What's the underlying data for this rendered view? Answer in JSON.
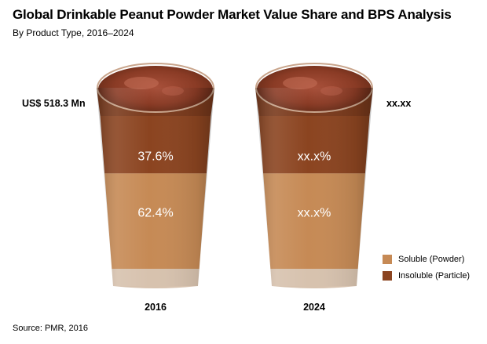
{
  "chart_data": {
    "type": "bar",
    "title": "Global Drinkable Peanut Powder Market Value Share and BPS Analysis",
    "subtitle": "By Product Type, 2016–2024",
    "categories": [
      "2016",
      "2024"
    ],
    "series": [
      {
        "name": "Soluble (Powder)",
        "values": [
          62.4,
          null
        ],
        "labels": [
          "62.4%",
          "xx.x%"
        ],
        "color": "#c68a55"
      },
      {
        "name": "Insoluble (Particle)",
        "values": [
          37.6,
          null
        ],
        "labels": [
          "37.6%",
          "xx.x%"
        ],
        "color": "#8b4420"
      }
    ],
    "market_values": [
      "US$ 518.3 Mn",
      "xx.xx"
    ],
    "source": "Source: PMR, 2016"
  },
  "colors": {
    "soluble": "#c68a55",
    "insoluble": "#8b4420"
  },
  "icons": [
    "glass-2016-icon",
    "glass-2024-icon"
  ]
}
